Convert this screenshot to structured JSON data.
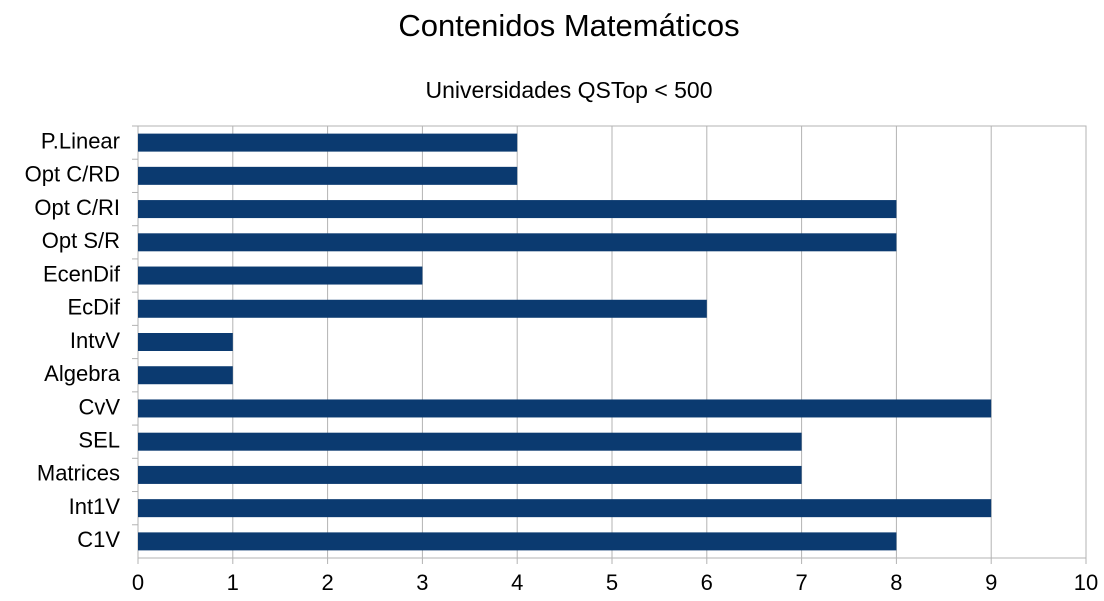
{
  "chart_data": {
    "type": "bar",
    "orientation": "horizontal",
    "title": "Contenidos Matemáticos",
    "subtitle": "Universidades QSTop < 500",
    "categories": [
      "P.Linear",
      "Opt C/RD",
      "Opt C/RI",
      "Opt S/R",
      "EcenDif",
      "EcDif",
      "IntvV",
      "Algebra",
      "CvV",
      "SEL",
      "Matrices",
      "Int1V",
      "C1V"
    ],
    "values": [
      4,
      4,
      8,
      8,
      3,
      6,
      1,
      1,
      9,
      7,
      7,
      9,
      8
    ],
    "color": "#0b3a70",
    "xlim": [
      0,
      10
    ],
    "xticks": [
      0,
      1,
      2,
      3,
      4,
      5,
      6,
      7,
      8,
      9,
      10
    ],
    "grid": true
  }
}
